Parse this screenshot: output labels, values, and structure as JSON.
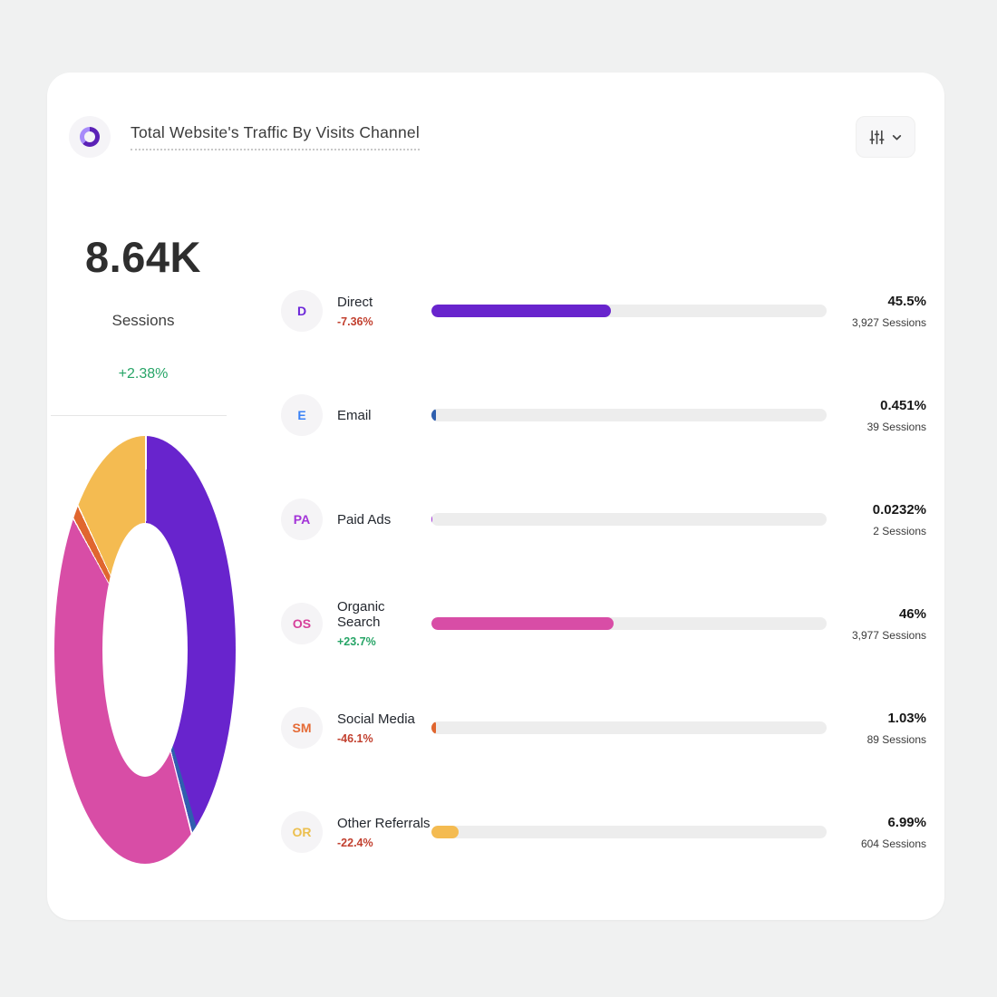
{
  "header": {
    "title": "Total Website's Traffic By Visits Channel",
    "icon": "pie-chart",
    "filter_button": {
      "sliders_icon": "sliders",
      "chevron_icon": "chevron-down"
    }
  },
  "summary": {
    "total": "8.64K",
    "unit": "Sessions",
    "change": "+2.38%"
  },
  "channels": [
    {
      "badge": "D",
      "badge_color": "#6d28d9",
      "label": "Direct",
      "change": "-7.36%",
      "pct": "45.5%",
      "sessions": "3,927 Sessions",
      "bar_pct": 45.5,
      "bar_color": "#6824cd"
    },
    {
      "badge": "E",
      "badge_color": "#3b82f6",
      "label": "Email",
      "change": "",
      "pct": "0.451%",
      "sessions": "39 Sessions",
      "bar_pct": 0.451,
      "bar_color": "#2f5fae"
    },
    {
      "badge": "PA",
      "badge_color": "#a333d8",
      "label": "Paid Ads",
      "change": "",
      "pct": "0.0232%",
      "sessions": "2 Sessions",
      "bar_pct": 0.0232,
      "bar_color": "#a333d8"
    },
    {
      "badge": "OS",
      "badge_color": "#d6409b",
      "label": "Organic Search",
      "change": "+23.7%",
      "pct": "46%",
      "sessions": "3,977 Sessions",
      "bar_pct": 46,
      "bar_color": "#d84da6"
    },
    {
      "badge": "SM",
      "badge_color": "#e56a35",
      "label": "Social Media",
      "change": "-46.1%",
      "pct": "1.03%",
      "sessions": "89 Sessions",
      "bar_pct": 1.03,
      "bar_color": "#e0662f"
    },
    {
      "badge": "OR",
      "badge_color": "#ecbf4e",
      "label": "Other Referrals",
      "change": "-22.4%",
      "pct": "6.99%",
      "sessions": "604 Sessions",
      "bar_pct": 6.99,
      "bar_color": "#f4bb51"
    }
  ],
  "chart_data": {
    "type": "pie",
    "title": "Total Website's Traffic By Visits Channel",
    "donut": true,
    "total_sessions_label": "8.64K",
    "total_change_pct": "+2.38%",
    "categories": [
      "Direct",
      "Email",
      "Paid Ads",
      "Organic Search",
      "Social Media",
      "Other Referrals"
    ],
    "values_pct": [
      45.5,
      0.451,
      0.0232,
      46,
      1.03,
      6.99
    ],
    "sessions": [
      3927,
      39,
      2,
      3977,
      89,
      604
    ],
    "colors": [
      "#6824cd",
      "#2f5fae",
      "#a333d8",
      "#d84da6",
      "#e0662f",
      "#f4bb51"
    ],
    "legend_position": "right-list",
    "start_angle_deg": 0,
    "direction": "clockwise"
  },
  "colors": {
    "positive": "#27a567",
    "negative": "#c2402f",
    "track": "#ededed",
    "card": "#ffffff",
    "page_bg": "#f0f1f1"
  }
}
